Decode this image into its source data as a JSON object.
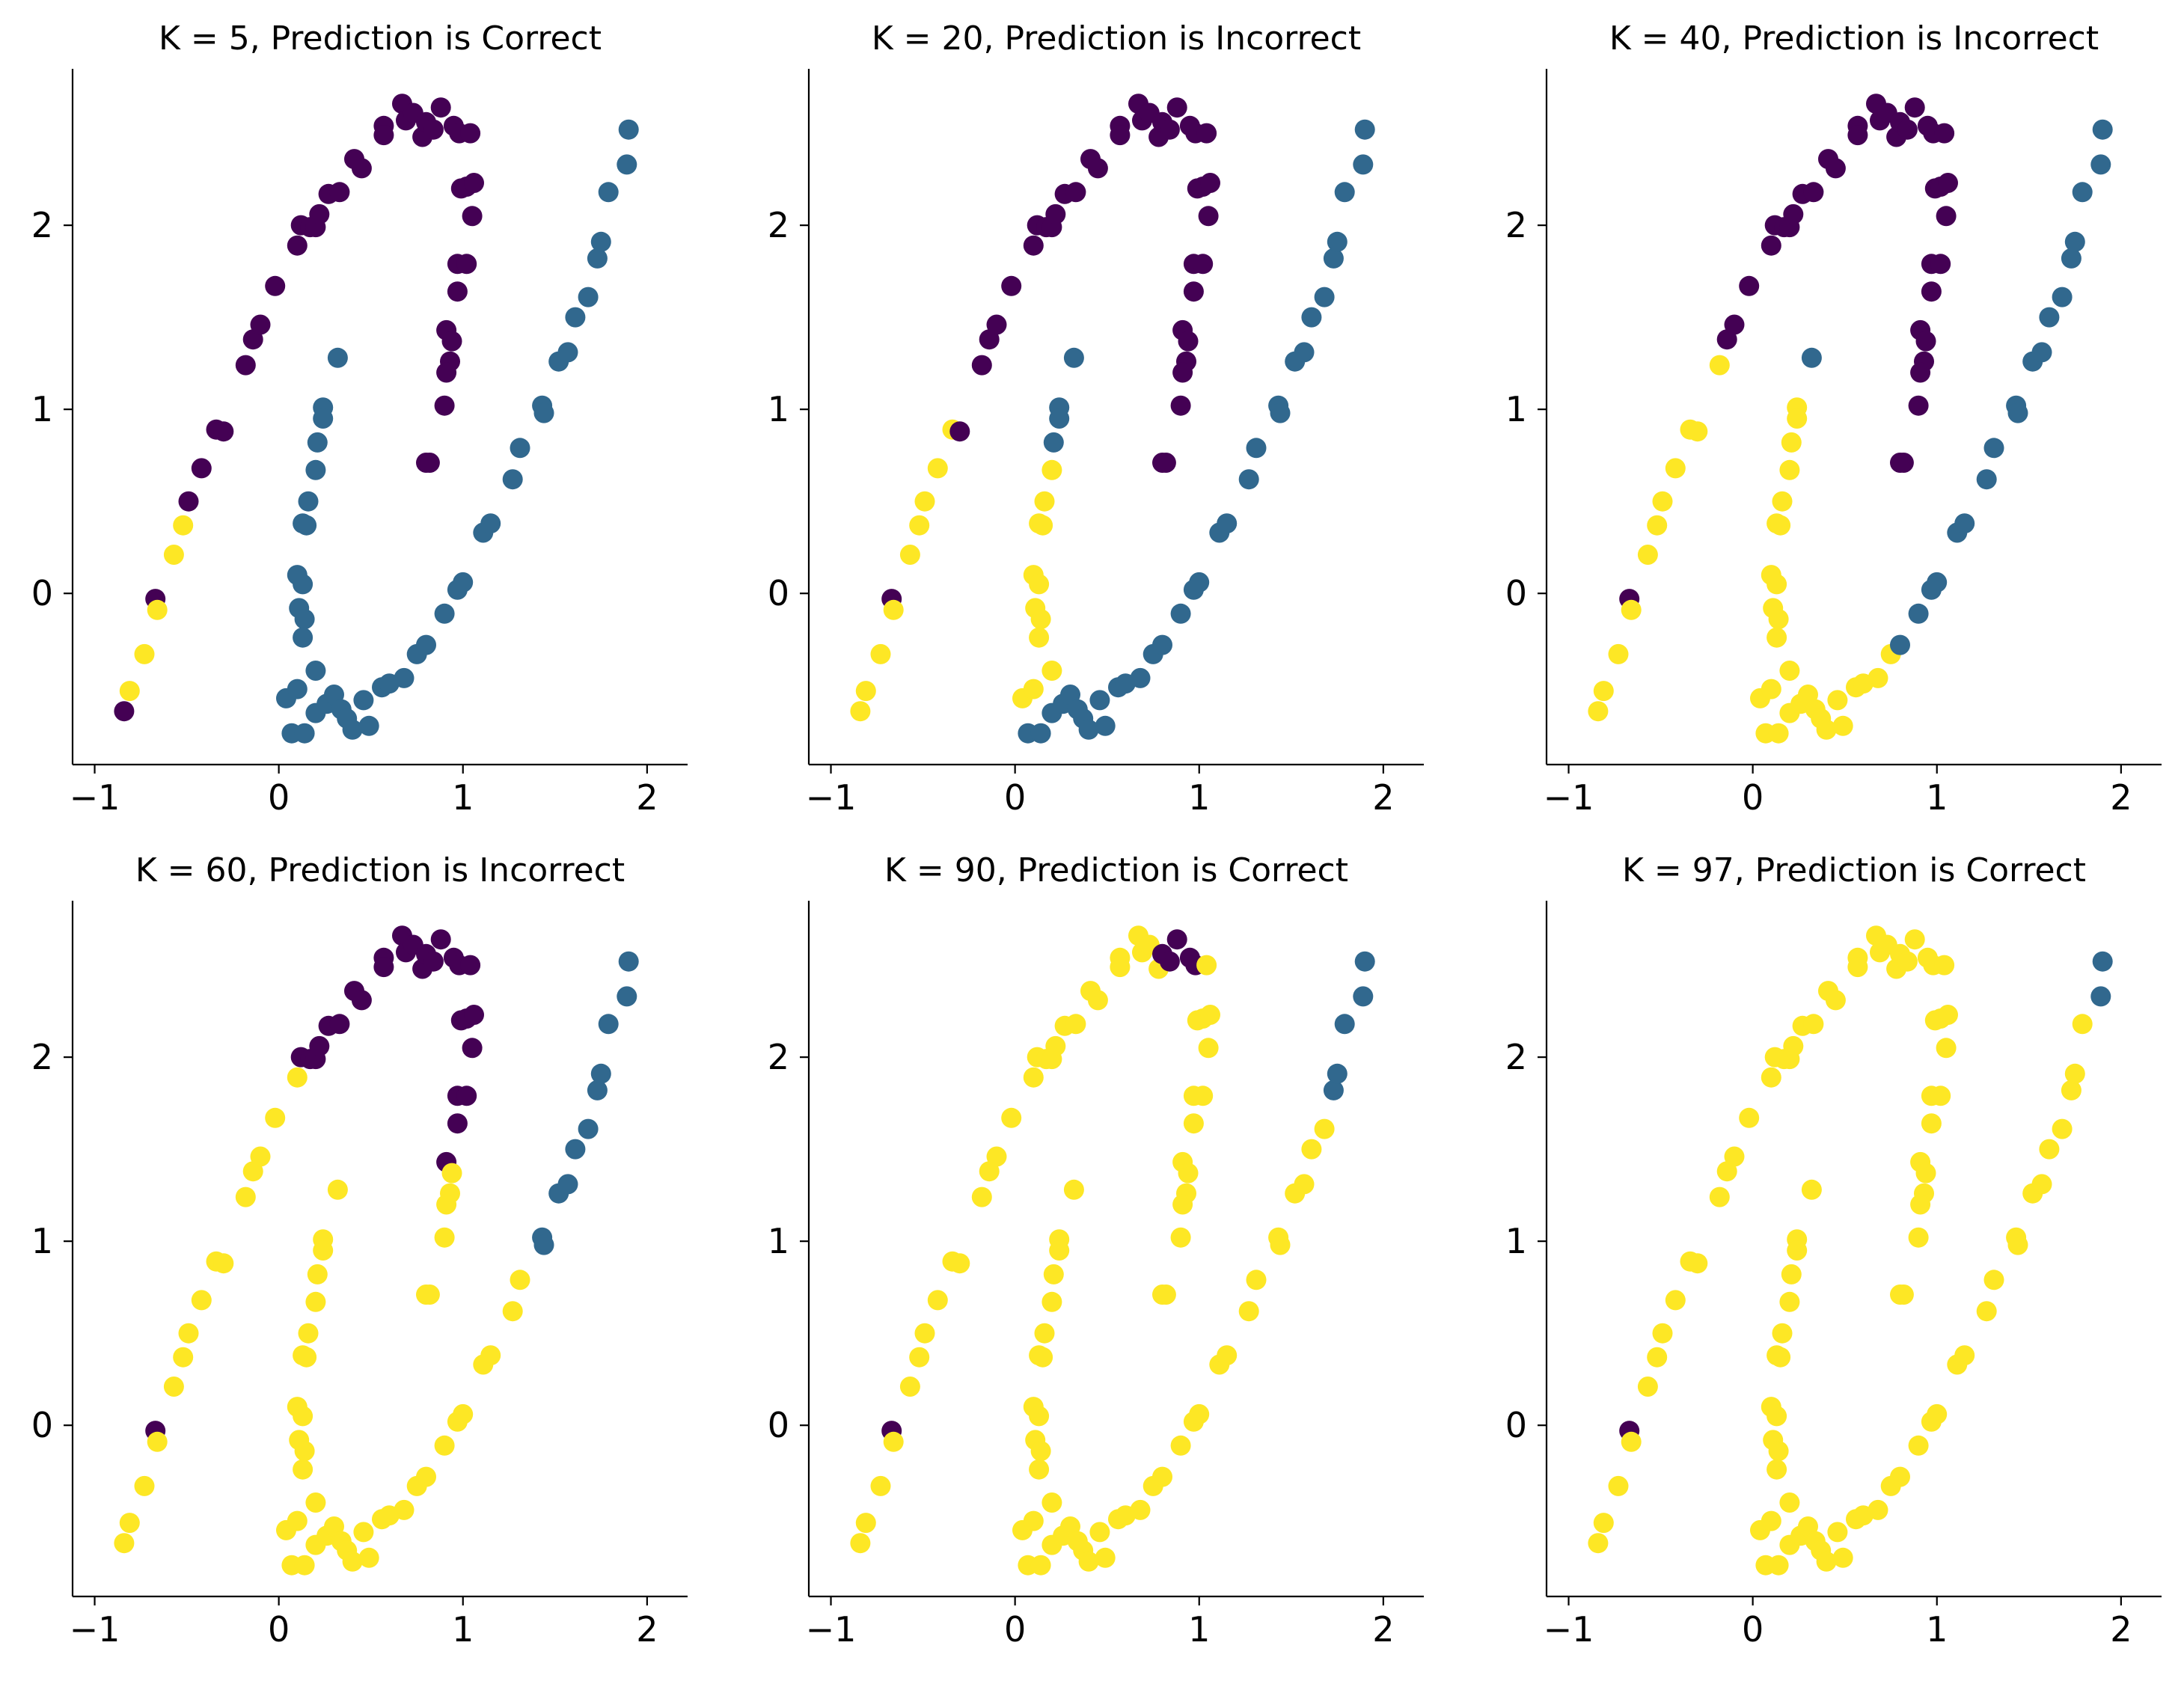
{
  "colors": {
    "class_0": "#440154",
    "class_1": "#31688e",
    "class_2": "#fde725",
    "axis": "#000000",
    "background": "#ffffff"
  },
  "axes_common": {
    "xlim": [
      -1.12,
      2.22
    ],
    "ylim": [
      -0.93,
      2.85
    ],
    "xticks": [
      -1,
      0,
      1,
      2
    ],
    "xtick_labels": [
      "−1",
      "0",
      "1",
      "2"
    ],
    "yticks": [
      0,
      1,
      2
    ],
    "ytick_labels": [
      "0",
      "1",
      "2"
    ],
    "spines": "left-bottom",
    "grid": false
  },
  "chart_data": [
    {
      "type": "scatter",
      "title": "K = 5, Prediction is Correct",
      "k": 5,
      "prediction": "Correct"
    },
    {
      "type": "scatter",
      "title": "K = 20, Prediction is Incorrect",
      "k": 20,
      "prediction": "Incorrect"
    },
    {
      "type": "scatter",
      "title": "K = 40, Prediction is Incorrect",
      "k": 40,
      "prediction": "Incorrect"
    },
    {
      "type": "scatter",
      "title": "K = 60, Prediction is Incorrect",
      "k": 60,
      "prediction": "Incorrect"
    },
    {
      "type": "scatter",
      "title": "K = 90, Prediction is Correct",
      "k": 90,
      "prediction": "Correct"
    },
    {
      "type": "scatter",
      "title": "K = 97, Prediction is Correct",
      "k": 97,
      "prediction": "Correct"
    }
  ],
  "points": [
    [
      -0.84,
      -0.64
    ],
    [
      -0.81,
      -0.53
    ],
    [
      -0.73,
      -0.33
    ],
    [
      -0.67,
      -0.03
    ],
    [
      -0.66,
      -0.09
    ],
    [
      -0.57,
      0.21
    ],
    [
      -0.52,
      0.37
    ],
    [
      -0.49,
      0.5
    ],
    [
      -0.42,
      0.68
    ],
    [
      -0.34,
      0.89
    ],
    [
      -0.3,
      0.88
    ],
    [
      -0.18,
      1.24
    ],
    [
      -0.14,
      1.38
    ],
    [
      -0.1,
      1.46
    ],
    [
      -0.02,
      1.67
    ],
    [
      0.1,
      1.89
    ],
    [
      0.12,
      2.0
    ],
    [
      0.17,
      1.99
    ],
    [
      0.2,
      1.99
    ],
    [
      0.22,
      2.06
    ],
    [
      0.27,
      2.17
    ],
    [
      0.33,
      2.18
    ],
    [
      0.41,
      2.36
    ],
    [
      0.45,
      2.31
    ],
    [
      0.57,
      2.54
    ],
    [
      0.57,
      2.49
    ],
    [
      0.67,
      2.66
    ],
    [
      0.69,
      2.57
    ],
    [
      0.73,
      2.61
    ],
    [
      0.78,
      2.48
    ],
    [
      0.8,
      2.56
    ],
    [
      0.84,
      2.52
    ],
    [
      0.88,
      2.64
    ],
    [
      0.95,
      2.54
    ],
    [
      0.98,
      2.5
    ],
    [
      1.04,
      2.5
    ],
    [
      0.99,
      2.2
    ],
    [
      1.02,
      2.21
    ],
    [
      1.06,
      2.23
    ],
    [
      1.05,
      2.05
    ],
    [
      0.97,
      1.79
    ],
    [
      1.02,
      1.79
    ],
    [
      0.97,
      1.64
    ],
    [
      0.91,
      1.43
    ],
    [
      0.94,
      1.37
    ],
    [
      0.93,
      1.26
    ],
    [
      0.91,
      1.2
    ],
    [
      0.9,
      1.02
    ],
    [
      0.8,
      0.71
    ],
    [
      0.82,
      0.71
    ],
    [
      0.32,
      1.28
    ],
    [
      0.24,
      1.01
    ],
    [
      0.24,
      0.95
    ],
    [
      0.21,
      0.82
    ],
    [
      0.2,
      0.67
    ],
    [
      0.16,
      0.5
    ],
    [
      0.13,
      0.38
    ],
    [
      0.15,
      0.37
    ],
    [
      0.1,
      0.1
    ],
    [
      0.13,
      0.05
    ],
    [
      0.11,
      -0.08
    ],
    [
      0.14,
      -0.14
    ],
    [
      0.13,
      -0.24
    ],
    [
      0.2,
      -0.42
    ],
    [
      0.04,
      -0.57
    ],
    [
      0.1,
      -0.52
    ],
    [
      0.07,
      -0.76
    ],
    [
      0.14,
      -0.76
    ],
    [
      0.2,
      -0.65
    ],
    [
      0.26,
      -0.6
    ],
    [
      0.3,
      -0.55
    ],
    [
      0.34,
      -0.63
    ],
    [
      0.37,
      -0.68
    ],
    [
      0.4,
      -0.74
    ],
    [
      0.46,
      -0.58
    ],
    [
      0.49,
      -0.72
    ],
    [
      0.56,
      -0.51
    ],
    [
      0.6,
      -0.49
    ],
    [
      0.68,
      -0.46
    ],
    [
      0.75,
      -0.33
    ],
    [
      0.8,
      -0.28
    ],
    [
      0.9,
      -0.11
    ],
    [
      0.97,
      0.02
    ],
    [
      1.0,
      0.06
    ],
    [
      1.11,
      0.33
    ],
    [
      1.15,
      0.38
    ],
    [
      1.27,
      0.62
    ],
    [
      1.31,
      0.79
    ],
    [
      1.43,
      1.02
    ],
    [
      1.44,
      0.98
    ],
    [
      1.52,
      1.26
    ],
    [
      1.57,
      1.31
    ],
    [
      1.61,
      1.5
    ],
    [
      1.68,
      1.61
    ],
    [
      1.73,
      1.82
    ],
    [
      1.75,
      1.91
    ],
    [
      1.79,
      2.18
    ],
    [
      1.89,
      2.33
    ],
    [
      1.9,
      2.52
    ]
  ],
  "point_classes": [
    [
      0,
      2,
      2,
      0,
      2,
      2,
      2,
      0,
      0,
      0,
      0,
      0,
      0,
      0,
      0,
      0,
      0,
      0,
      0,
      0,
      0,
      0,
      0,
      0,
      0,
      0,
      0,
      0,
      0,
      0,
      0,
      0,
      0,
      0,
      0,
      0,
      0,
      0,
      0,
      0,
      0,
      0,
      0,
      0,
      0,
      0,
      0,
      0,
      0,
      0,
      1,
      1,
      1,
      1,
      1,
      1,
      1,
      1,
      1,
      1,
      1,
      1,
      1,
      1,
      1,
      1,
      1,
      1,
      1,
      1,
      1,
      1,
      1,
      1,
      1,
      1,
      1,
      1,
      1,
      1,
      1,
      1,
      1,
      1,
      1,
      1,
      1,
      1,
      1,
      1,
      1,
      1,
      1,
      1,
      1,
      1,
      1,
      1,
      1
    ],
    [
      2,
      2,
      2,
      0,
      2,
      2,
      2,
      2,
      2,
      2,
      0,
      0,
      0,
      0,
      0,
      0,
      0,
      0,
      0,
      0,
      0,
      0,
      0,
      0,
      0,
      0,
      0,
      0,
      0,
      0,
      0,
      0,
      0,
      0,
      0,
      0,
      0,
      0,
      0,
      0,
      0,
      0,
      0,
      0,
      0,
      0,
      0,
      0,
      0,
      0,
      1,
      1,
      1,
      1,
      2,
      2,
      2,
      2,
      2,
      2,
      2,
      2,
      2,
      2,
      2,
      2,
      1,
      1,
      1,
      1,
      1,
      1,
      1,
      1,
      1,
      1,
      1,
      1,
      1,
      1,
      1,
      1,
      1,
      1,
      1,
      1,
      1,
      1,
      1,
      1,
      1,
      1,
      1,
      1,
      1,
      1,
      1,
      1,
      1
    ],
    [
      2,
      2,
      2,
      0,
      2,
      2,
      2,
      2,
      2,
      2,
      2,
      2,
      0,
      0,
      0,
      0,
      0,
      0,
      0,
      0,
      0,
      0,
      0,
      0,
      0,
      0,
      0,
      0,
      0,
      0,
      0,
      0,
      0,
      0,
      0,
      0,
      0,
      0,
      0,
      0,
      0,
      0,
      0,
      0,
      0,
      0,
      0,
      0,
      0,
      0,
      1,
      2,
      2,
      2,
      2,
      2,
      2,
      2,
      2,
      2,
      2,
      2,
      2,
      2,
      2,
      2,
      2,
      2,
      2,
      2,
      2,
      2,
      2,
      2,
      2,
      2,
      2,
      2,
      2,
      2,
      1,
      1,
      1,
      1,
      1,
      1,
      1,
      1,
      1,
      1,
      1,
      1,
      1,
      1,
      1,
      1,
      1,
      1,
      1
    ],
    [
      2,
      2,
      2,
      0,
      2,
      2,
      2,
      2,
      2,
      2,
      2,
      2,
      2,
      2,
      2,
      2,
      0,
      0,
      0,
      0,
      0,
      0,
      0,
      0,
      0,
      0,
      0,
      0,
      0,
      0,
      0,
      0,
      0,
      0,
      0,
      0,
      0,
      0,
      0,
      0,
      0,
      0,
      0,
      0,
      2,
      2,
      2,
      2,
      2,
      2,
      2,
      2,
      2,
      2,
      2,
      2,
      2,
      2,
      2,
      2,
      2,
      2,
      2,
      2,
      2,
      2,
      2,
      2,
      2,
      2,
      2,
      2,
      2,
      2,
      2,
      2,
      2,
      2,
      2,
      2,
      2,
      2,
      2,
      2,
      2,
      2,
      2,
      2,
      1,
      1,
      1,
      1,
      1,
      1,
      1,
      1,
      1,
      1,
      1
    ],
    [
      2,
      2,
      2,
      0,
      2,
      2,
      2,
      2,
      2,
      2,
      2,
      2,
      2,
      2,
      2,
      2,
      2,
      2,
      2,
      2,
      2,
      2,
      2,
      2,
      2,
      2,
      2,
      2,
      2,
      2,
      0,
      0,
      0,
      0,
      0,
      2,
      2,
      2,
      2,
      2,
      2,
      2,
      2,
      2,
      2,
      2,
      2,
      2,
      2,
      2,
      2,
      2,
      2,
      2,
      2,
      2,
      2,
      2,
      2,
      2,
      2,
      2,
      2,
      2,
      2,
      2,
      2,
      2,
      2,
      2,
      2,
      2,
      2,
      2,
      2,
      2,
      2,
      2,
      2,
      2,
      2,
      2,
      2,
      2,
      2,
      2,
      2,
      2,
      2,
      2,
      2,
      2,
      2,
      2,
      1,
      1,
      1,
      1,
      1
    ],
    [
      2,
      2,
      2,
      0,
      2,
      2,
      2,
      2,
      2,
      2,
      2,
      2,
      2,
      2,
      2,
      2,
      2,
      2,
      2,
      2,
      2,
      2,
      2,
      2,
      2,
      2,
      2,
      2,
      2,
      2,
      2,
      2,
      2,
      2,
      2,
      2,
      2,
      2,
      2,
      2,
      2,
      2,
      2,
      2,
      2,
      2,
      2,
      2,
      2,
      2,
      2,
      2,
      2,
      2,
      2,
      2,
      2,
      2,
      2,
      2,
      2,
      2,
      2,
      2,
      2,
      2,
      2,
      2,
      2,
      2,
      2,
      2,
      2,
      2,
      2,
      2,
      2,
      2,
      2,
      2,
      2,
      2,
      2,
      2,
      2,
      2,
      2,
      2,
      2,
      2,
      2,
      2,
      2,
      2,
      2,
      2,
      2,
      1,
      1
    ]
  ]
}
